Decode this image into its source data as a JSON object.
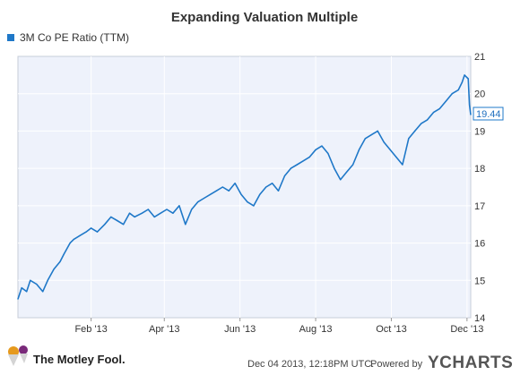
{
  "colors": {
    "series": "#1f78c8",
    "plot_bg": "#eef2fb",
    "grid": "#ffffff",
    "border": "#c7cdd8",
    "callout_border": "#1f78c8",
    "fool_cap": "#e69a1e"
  },
  "footer": {
    "timestamp": "Dec 04 2013, 12:18PM UTC.",
    "powered_by": "Powered by",
    "brand": "YCHARTS",
    "logo_text": "The Motley Fool."
  },
  "chart_data": {
    "type": "line",
    "title": "Expanding Valuation Multiple",
    "xlabel": "",
    "ylabel": "",
    "ylim": [
      14,
      21
    ],
    "grid": true,
    "legend_position": "top-left",
    "x_ticks": [
      "Feb '13",
      "Apr '13",
      "Jun '13",
      "Aug '13",
      "Oct '13",
      "Dec '13"
    ],
    "y_ticks": [
      "14",
      "15",
      "16",
      "17",
      "18",
      "19",
      "20",
      "21"
    ],
    "last_value_label": "19.44",
    "series": [
      {
        "name": "3M Co PE Ratio (TTM)",
        "x": [
          "2012-12-04",
          "2012-12-07",
          "2012-12-11",
          "2012-12-14",
          "2012-12-19",
          "2012-12-24",
          "2012-12-28",
          "2013-01-02",
          "2013-01-07",
          "2013-01-10",
          "2013-01-15",
          "2013-01-18",
          "2013-01-23",
          "2013-01-28",
          "2013-02-01",
          "2013-02-06",
          "2013-02-12",
          "2013-02-17",
          "2013-02-22",
          "2013-02-27",
          "2013-03-04",
          "2013-03-08",
          "2013-03-14",
          "2013-03-19",
          "2013-03-24",
          "2013-03-29",
          "2013-04-03",
          "2013-04-08",
          "2013-04-13",
          "2013-04-18",
          "2013-04-23",
          "2013-04-28",
          "2013-05-03",
          "2013-05-08",
          "2013-05-13",
          "2013-05-18",
          "2013-05-23",
          "2013-05-28",
          "2013-06-02",
          "2013-06-07",
          "2013-06-12",
          "2013-06-17",
          "2013-06-22",
          "2013-06-27",
          "2013-07-02",
          "2013-07-07",
          "2013-07-12",
          "2013-07-17",
          "2013-07-22",
          "2013-07-27",
          "2013-08-01",
          "2013-08-06",
          "2013-08-11",
          "2013-08-16",
          "2013-08-21",
          "2013-08-26",
          "2013-08-31",
          "2013-09-05",
          "2013-09-10",
          "2013-09-15",
          "2013-09-20",
          "2013-09-25",
          "2013-09-30",
          "2013-10-05",
          "2013-10-10",
          "2013-10-15",
          "2013-10-20",
          "2013-10-25",
          "2013-10-30",
          "2013-11-04",
          "2013-11-09",
          "2013-11-14",
          "2013-11-19",
          "2013-11-24",
          "2013-11-27",
          "2013-11-29",
          "2013-12-02",
          "2013-12-03",
          "2013-12-04"
        ],
        "values": [
          14.5,
          14.8,
          14.7,
          15.0,
          14.9,
          14.7,
          15.0,
          15.3,
          15.5,
          15.7,
          16.0,
          16.1,
          16.2,
          16.3,
          16.4,
          16.3,
          16.5,
          16.7,
          16.6,
          16.5,
          16.8,
          16.7,
          16.8,
          16.9,
          16.7,
          16.8,
          16.9,
          16.8,
          17.0,
          16.5,
          16.9,
          17.1,
          17.2,
          17.3,
          17.4,
          17.5,
          17.4,
          17.6,
          17.3,
          17.1,
          17.0,
          17.3,
          17.5,
          17.6,
          17.4,
          17.8,
          18.0,
          18.1,
          18.2,
          18.3,
          18.5,
          18.6,
          18.4,
          18.0,
          17.7,
          17.9,
          18.1,
          18.5,
          18.8,
          18.9,
          19.0,
          18.7,
          18.5,
          18.3,
          18.1,
          18.8,
          19.0,
          19.2,
          19.3,
          19.5,
          19.6,
          19.8,
          20.0,
          20.1,
          20.3,
          20.5,
          20.4,
          19.7,
          19.44
        ]
      }
    ]
  }
}
